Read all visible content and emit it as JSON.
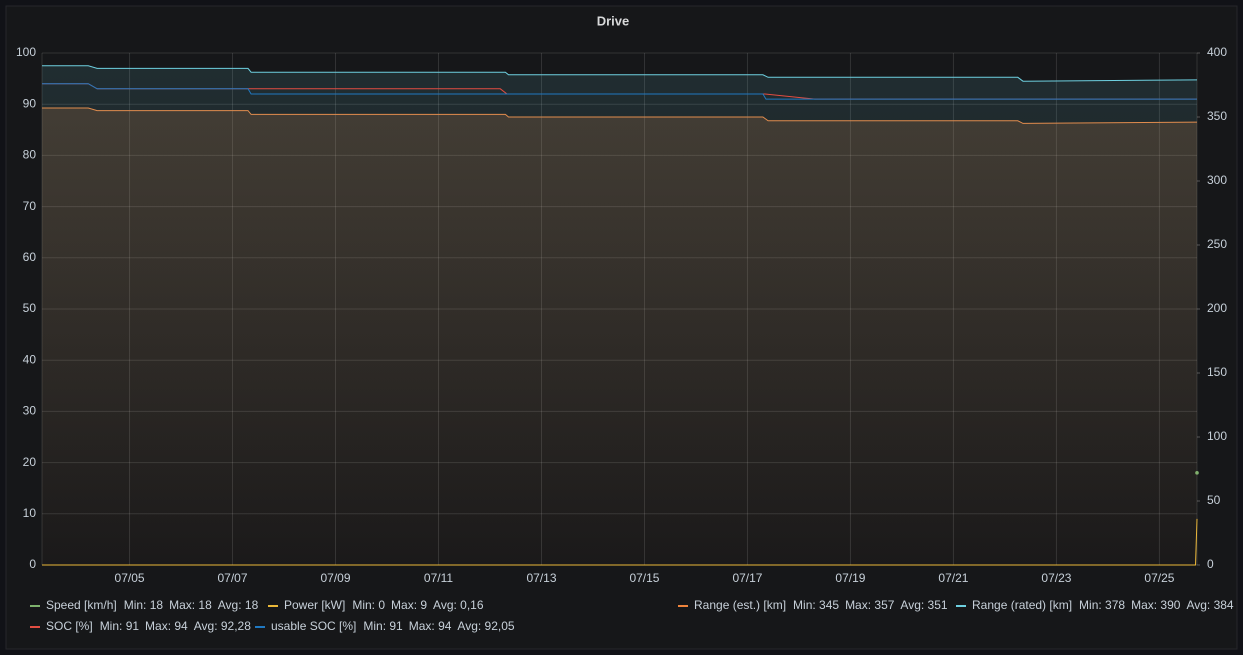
{
  "chart_data": {
    "type": "line",
    "title": "Drive",
    "xlim": [
      3.3,
      25.73
    ],
    "xticks": [
      {
        "value": 5,
        "label": "07/05"
      },
      {
        "value": 7,
        "label": "07/07"
      },
      {
        "value": 9,
        "label": "07/09"
      },
      {
        "value": 11,
        "label": "07/11"
      },
      {
        "value": 13,
        "label": "07/13"
      },
      {
        "value": 15,
        "label": "07/15"
      },
      {
        "value": 17,
        "label": "07/17"
      },
      {
        "value": 19,
        "label": "07/19"
      },
      {
        "value": 21,
        "label": "07/21"
      },
      {
        "value": 23,
        "label": "07/23"
      },
      {
        "value": 25,
        "label": "07/25"
      }
    ],
    "ylim": [
      0,
      100
    ],
    "yticks": [
      0,
      10,
      20,
      30,
      40,
      50,
      60,
      70,
      80,
      90,
      100
    ],
    "y2lim": [
      0,
      400
    ],
    "y2ticks": [
      0,
      50,
      100,
      150,
      200,
      250,
      300,
      350,
      400
    ],
    "grid": true,
    "series": [
      {
        "name": "Speed [km/h]",
        "color": "#7eb26d",
        "stats": [
          "Min: 18",
          "Max: 18",
          "Avg: 18"
        ],
        "x": [
          25.73
        ],
        "values": [
          18
        ]
      },
      {
        "name": "Power [kW]",
        "color": "#eab839",
        "stats": [
          "Min: 0",
          "Max: 9",
          "Avg: 0,16"
        ],
        "x": [
          3.3,
          25.7,
          25.73
        ],
        "values": [
          0,
          0,
          9
        ]
      },
      {
        "name": "Range (est.) [km]",
        "color": "#ef843c",
        "axis": "y2",
        "fill": true,
        "stats": [
          "Min: 345",
          "Max: 357",
          "Avg: 351"
        ],
        "x": [
          3.3,
          4.2,
          4.37,
          7.3,
          7.36,
          12.3,
          12.36,
          17.3,
          17.4,
          22.25,
          22.35,
          25.73
        ],
        "values": [
          357,
          357,
          355,
          355,
          352,
          352,
          350,
          350,
          347,
          347,
          345,
          346
        ]
      },
      {
        "name": "Range (rated) [km]",
        "color": "#6ed0e0",
        "axis": "y2",
        "fill": true,
        "stats": [
          "Min: 378",
          "Max: 390",
          "Avg: 384"
        ],
        "x": [
          3.3,
          4.2,
          4.37,
          7.3,
          7.36,
          12.3,
          12.36,
          17.3,
          17.4,
          22.25,
          22.35,
          25.73
        ],
        "values": [
          390,
          390,
          388,
          388,
          385,
          385,
          383,
          383,
          381,
          381,
          378,
          379
        ]
      },
      {
        "name": "SOC [%]",
        "color": "#e24d42",
        "stats": [
          "Min: 91",
          "Max: 94",
          "Avg: 92,28"
        ],
        "x": [
          3.3,
          4.2,
          4.37,
          12.2,
          12.33,
          17.34,
          18.31,
          25.73
        ],
        "values": [
          94,
          94,
          93,
          93,
          92,
          92,
          91,
          91
        ]
      },
      {
        "name": "usable SOC [%]",
        "color": "#1f78c1",
        "stats": [
          "Min: 91",
          "Max: 94",
          "Avg: 92,05"
        ],
        "x": [
          3.3,
          4.2,
          4.37,
          7.3,
          7.36,
          17.3,
          17.36,
          25.73
        ],
        "values": [
          94,
          94,
          93,
          93,
          92,
          92,
          91,
          91
        ]
      }
    ]
  }
}
